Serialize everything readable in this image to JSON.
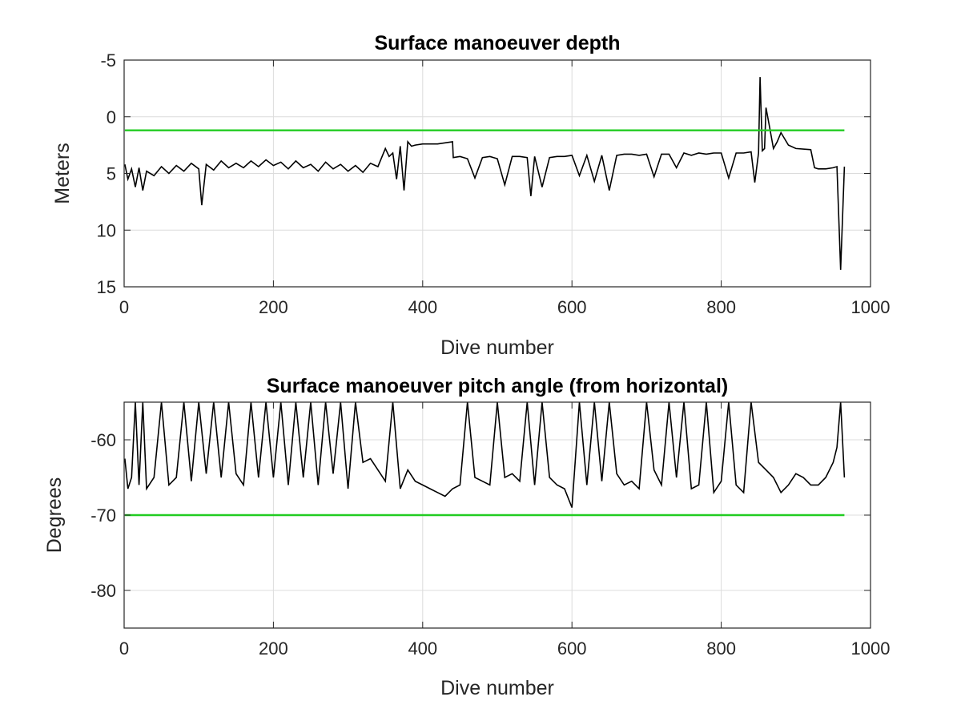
{
  "chart_data": [
    {
      "type": "line",
      "title": "Surface manoeuver depth",
      "xlabel": "Dive number",
      "ylabel": "Meters",
      "xlim": [
        0,
        1000
      ],
      "ylim": [
        -5,
        15
      ],
      "y_reversed": true,
      "grid": true,
      "xticks": [
        "0",
        "200",
        "400",
        "600",
        "800",
        "1000"
      ],
      "yticks": [
        "-5",
        "0",
        "5",
        "10",
        "15"
      ],
      "series": [
        {
          "color": "#000000",
          "x": [
            1,
            5,
            10,
            15,
            20,
            25,
            30,
            40,
            50,
            60,
            70,
            80,
            90,
            100,
            104,
            110,
            120,
            130,
            140,
            150,
            160,
            170,
            180,
            190,
            200,
            210,
            220,
            230,
            240,
            250,
            260,
            270,
            280,
            290,
            300,
            310,
            320,
            330,
            340,
            350,
            355,
            360,
            365,
            370,
            375,
            380,
            385,
            390,
            400,
            420,
            440,
            441,
            450,
            460,
            470,
            480,
            490,
            500,
            510,
            520,
            530,
            540,
            545,
            550,
            560,
            570,
            580,
            590,
            600,
            610,
            620,
            630,
            640,
            650,
            660,
            670,
            680,
            690,
            700,
            710,
            720,
            730,
            740,
            750,
            760,
            770,
            780,
            790,
            800,
            810,
            820,
            830,
            840,
            845,
            850,
            852,
            855,
            858,
            860,
            865,
            870,
            875,
            880,
            890,
            900,
            920,
            925,
            930,
            940,
            950,
            955,
            960,
            965
          ],
          "y": [
            4.2,
            5.5,
            4.6,
            6.2,
            4.5,
            6.5,
            4.8,
            5.2,
            4.4,
            5.0,
            4.3,
            4.8,
            4.1,
            4.6,
            7.8,
            4.2,
            4.7,
            3.9,
            4.5,
            4.1,
            4.5,
            3.9,
            4.4,
            3.8,
            4.3,
            4.0,
            4.6,
            3.9,
            4.5,
            4.2,
            4.8,
            4.0,
            4.6,
            4.2,
            4.8,
            4.3,
            4.9,
            4.1,
            4.4,
            2.8,
            3.5,
            3.2,
            5.5,
            2.6,
            6.5,
            2.2,
            2.6,
            2.5,
            2.4,
            2.4,
            2.2,
            3.6,
            3.5,
            3.7,
            5.4,
            3.6,
            3.5,
            3.7,
            6.0,
            3.5,
            3.5,
            3.6,
            7.0,
            3.5,
            6.2,
            3.6,
            3.5,
            3.5,
            3.4,
            5.2,
            3.4,
            5.7,
            3.4,
            6.5,
            3.4,
            3.3,
            3.3,
            3.4,
            3.3,
            5.3,
            3.3,
            3.3,
            4.5,
            3.2,
            3.4,
            3.2,
            3.3,
            3.2,
            3.2,
            5.4,
            3.2,
            3.2,
            3.1,
            5.8,
            3.2,
            -3.5,
            3.0,
            2.8,
            -0.8,
            1.0,
            2.8,
            2.2,
            1.4,
            2.5,
            2.8,
            2.9,
            4.5,
            4.6,
            4.6,
            4.5,
            4.4,
            13.5,
            4.4
          ]
        },
        {
          "color": "#22cc22",
          "x": [
            1,
            965
          ],
          "y": [
            1.2,
            1.2
          ]
        }
      ]
    },
    {
      "type": "line",
      "title": "Surface manoeuver pitch angle (from horizontal)",
      "xlabel": "Dive number",
      "ylabel": "Degrees",
      "xlim": [
        0,
        1000
      ],
      "ylim": [
        -85,
        -55
      ],
      "grid": true,
      "xticks": [
        "0",
        "200",
        "400",
        "600",
        "800",
        "1000"
      ],
      "yticks": [
        "-60",
        "-70",
        "-80"
      ],
      "series": [
        {
          "color": "#000000",
          "x": [
            1,
            5,
            10,
            15,
            20,
            25,
            30,
            40,
            50,
            60,
            70,
            80,
            90,
            100,
            110,
            120,
            130,
            140,
            150,
            160,
            170,
            180,
            190,
            200,
            210,
            220,
            230,
            240,
            250,
            260,
            270,
            280,
            290,
            300,
            310,
            320,
            330,
            340,
            350,
            360,
            370,
            380,
            390,
            400,
            410,
            420,
            430,
            440,
            450,
            460,
            470,
            480,
            490,
            500,
            510,
            520,
            530,
            540,
            550,
            560,
            570,
            580,
            590,
            600,
            610,
            620,
            630,
            640,
            650,
            660,
            670,
            680,
            690,
            700,
            710,
            720,
            730,
            740,
            750,
            760,
            770,
            780,
            790,
            800,
            810,
            820,
            830,
            840,
            850,
            860,
            870,
            880,
            890,
            900,
            910,
            920,
            930,
            940,
            950,
            955,
            960,
            965
          ],
          "y": [
            -62.5,
            -66.5,
            -65,
            -55,
            -66,
            -55,
            -66.5,
            -65,
            -55,
            -66,
            -65,
            -55,
            -65.5,
            -55,
            -64.5,
            -55,
            -65,
            -55,
            -64.5,
            -66,
            -55,
            -65,
            -55,
            -65,
            -55,
            -66,
            -55,
            -65,
            -55,
            -66,
            -55,
            -64.5,
            -55,
            -66.5,
            -55,
            -63,
            -62.5,
            -64,
            -65.5,
            -55,
            -66.5,
            -64,
            -65.5,
            -66,
            -66.5,
            -67,
            -67.5,
            -66.5,
            -66,
            -55,
            -65,
            -65.5,
            -66,
            -55,
            -65,
            -64.5,
            -65.5,
            -55,
            -66,
            -55,
            -65,
            -66,
            -66.5,
            -69,
            -55,
            -66,
            -55,
            -65.5,
            -55,
            -64.5,
            -66,
            -65.5,
            -66.5,
            -55,
            -64,
            -66,
            -55,
            -65,
            -55,
            -66.5,
            -66,
            -55,
            -67,
            -65.5,
            -55,
            -66,
            -67,
            -55,
            -63,
            -64,
            -65,
            -67,
            -66,
            -64.5,
            -65,
            -66,
            -66,
            -65,
            -63,
            -61,
            -55,
            -65
          ]
        },
        {
          "color": "#22cc22",
          "x": [
            1,
            965
          ],
          "y": [
            -70,
            -70
          ]
        }
      ]
    }
  ]
}
